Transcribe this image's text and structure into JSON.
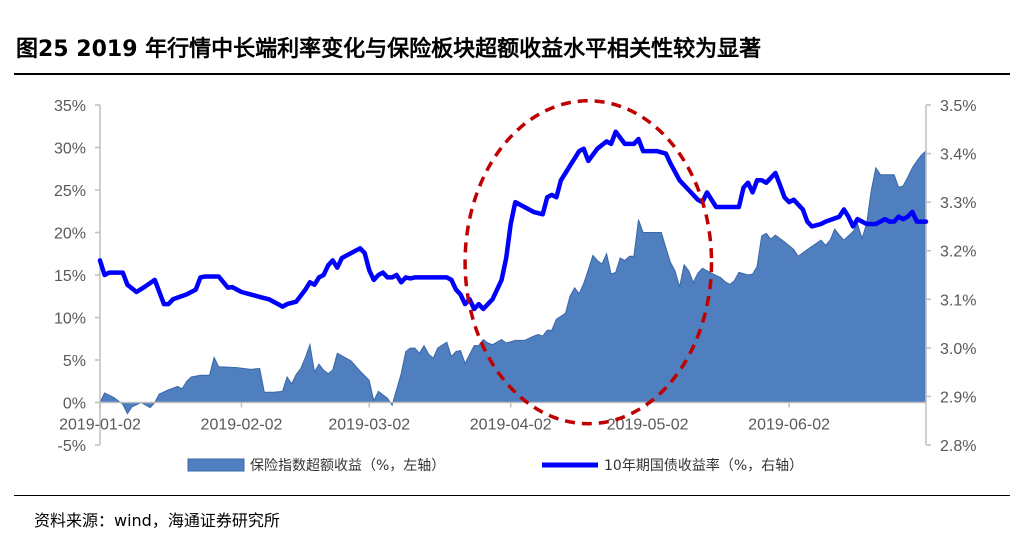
{
  "title": "图25 2019 年行情中长端利率变化与保险板块超额收益水平相关性较为显著",
  "source": "资料来源：wind，海通证券研究所",
  "colors": {
    "area": "#4f7fbe",
    "area_edge": "#3a67a8",
    "line": "#0000ff",
    "circle": "#c00000",
    "axis": "#bfbfbf"
  },
  "chart_data": {
    "type": "area+line",
    "x_ticks": [
      "2019-01-02",
      "2019-02-02",
      "2019-03-02",
      "2019-04-02",
      "2019-05-02",
      "2019-06-02"
    ],
    "x_tick_days": [
      0,
      31,
      59,
      90,
      120,
      151
    ],
    "left_axis": {
      "ticks": [
        "35%",
        "30%",
        "25%",
        "20%",
        "15%",
        "10%",
        "5%",
        "0%",
        "-5%"
      ],
      "ylim": [
        -5,
        35
      ]
    },
    "right_axis": {
      "ticks": [
        "3.5%",
        "3.4%",
        "3.3%",
        "3.2%",
        "3.1%",
        "3.0%",
        "2.9%",
        "2.8%"
      ],
      "ylim": [
        2.8,
        3.5
      ]
    },
    "x_range_days": [
      0,
      181
    ],
    "series": [
      {
        "name": "保险指数超额收益（%，左轴）",
        "type": "area",
        "axis": "left",
        "points": [
          [
            0,
            0
          ],
          [
            1,
            1.1
          ],
          [
            3,
            0.6
          ],
          [
            5,
            -0.2
          ],
          [
            6,
            -1.3
          ],
          [
            7,
            -0.5
          ],
          [
            9,
            0
          ],
          [
            10,
            -0.3
          ],
          [
            11,
            -0.6
          ],
          [
            12,
            0
          ],
          [
            13,
            1
          ],
          [
            15,
            1.5
          ],
          [
            17,
            1.9
          ],
          [
            18,
            1.6
          ],
          [
            19,
            2.5
          ],
          [
            20,
            3
          ],
          [
            22,
            3.2
          ],
          [
            24,
            3.2
          ],
          [
            25,
            5.3
          ],
          [
            26,
            4.2
          ],
          [
            30,
            4.1
          ],
          [
            33,
            3.9
          ],
          [
            35,
            4
          ],
          [
            36,
            1.2
          ],
          [
            38,
            1.2
          ],
          [
            40,
            1.3
          ],
          [
            41,
            3
          ],
          [
            42,
            2.2
          ],
          [
            43,
            3.3
          ],
          [
            44,
            4
          ],
          [
            45,
            5.3
          ],
          [
            46,
            6.8
          ],
          [
            47,
            3.6
          ],
          [
            48,
            4.5
          ],
          [
            49,
            3.8
          ],
          [
            50,
            3.4
          ],
          [
            51,
            3.8
          ],
          [
            52,
            5.8
          ],
          [
            55,
            4.9
          ],
          [
            57,
            3.7
          ],
          [
            59,
            2.6
          ],
          [
            60,
            0.2
          ],
          [
            61,
            1.3
          ],
          [
            63,
            0.5
          ],
          [
            64,
            -0.3
          ],
          [
            66,
            3.4
          ],
          [
            67,
            6
          ],
          [
            68,
            6.4
          ],
          [
            69,
            6.4
          ],
          [
            70,
            5.8
          ],
          [
            71,
            6.7
          ],
          [
            72,
            5.7
          ],
          [
            73,
            5.2
          ],
          [
            74,
            6.4
          ],
          [
            76,
            7.1
          ],
          [
            77,
            5.4
          ],
          [
            78,
            6
          ],
          [
            79,
            6.1
          ],
          [
            80,
            4.6
          ],
          [
            82,
            6.7
          ],
          [
            83,
            6.7
          ],
          [
            84,
            7.4
          ],
          [
            85,
            7
          ],
          [
            86,
            6.8
          ],
          [
            88,
            7.4
          ],
          [
            89,
            7
          ],
          [
            91,
            7.3
          ],
          [
            93,
            7.3
          ],
          [
            95,
            7.8
          ],
          [
            96,
            8
          ],
          [
            97,
            7.8
          ],
          [
            98,
            8.5
          ],
          [
            99,
            8.5
          ],
          [
            100,
            9.8
          ],
          [
            102,
            10.5
          ],
          [
            103,
            12.5
          ],
          [
            104,
            13.5
          ],
          [
            105,
            12.8
          ],
          [
            106,
            14
          ],
          [
            107,
            15.6
          ],
          [
            108,
            17.3
          ],
          [
            109,
            16.7
          ],
          [
            110,
            16.3
          ],
          [
            111,
            17.5
          ],
          [
            112,
            15.1
          ],
          [
            113,
            15.3
          ],
          [
            114,
            17
          ],
          [
            115,
            16.7
          ],
          [
            116,
            17.2
          ],
          [
            117,
            17.2
          ],
          [
            118,
            21.5
          ],
          [
            119,
            20
          ],
          [
            120,
            20
          ],
          [
            123,
            20
          ],
          [
            124,
            18.2
          ],
          [
            125,
            16.5
          ],
          [
            126,
            15.5
          ],
          [
            127,
            13.6
          ],
          [
            128,
            16.2
          ],
          [
            129,
            15.5
          ],
          [
            130,
            14.1
          ],
          [
            131,
            15.2
          ],
          [
            132,
            15.8
          ],
          [
            133,
            15.5
          ],
          [
            134,
            15.2
          ],
          [
            136,
            14.7
          ],
          [
            137,
            14.2
          ],
          [
            138,
            13.9
          ],
          [
            139,
            14.3
          ],
          [
            140,
            15.3
          ],
          [
            142,
            15
          ],
          [
            143,
            15.1
          ],
          [
            144,
            16
          ],
          [
            145,
            19.6
          ],
          [
            146,
            19.9
          ],
          [
            147,
            19.2
          ],
          [
            148,
            19.7
          ],
          [
            150,
            18.9
          ],
          [
            152,
            18
          ],
          [
            153,
            17.2
          ],
          [
            155,
            18
          ],
          [
            158,
            19.1
          ],
          [
            159,
            18.5
          ],
          [
            160,
            19.1
          ],
          [
            161,
            20.4
          ],
          [
            162,
            19.7
          ],
          [
            163,
            19.1
          ],
          [
            165,
            20.1
          ],
          [
            166,
            21
          ],
          [
            167,
            19.3
          ],
          [
            168,
            21.1
          ],
          [
            169,
            24.9
          ],
          [
            170,
            27.6
          ],
          [
            171,
            26.8
          ],
          [
            173,
            26.8
          ],
          [
            174,
            26.8
          ],
          [
            175,
            25.3
          ],
          [
            176,
            25.5
          ],
          [
            177,
            26.5
          ],
          [
            178,
            27.6
          ],
          [
            179,
            28.4
          ],
          [
            180,
            29.1
          ],
          [
            181,
            29.6
          ]
        ]
      },
      {
        "name": "10年期国债收益率（%，右轴）",
        "type": "line",
        "axis": "right",
        "points": [
          [
            0,
            3.18
          ],
          [
            1,
            3.15
          ],
          [
            2,
            3.155
          ],
          [
            5,
            3.155
          ],
          [
            6,
            3.13
          ],
          [
            8,
            3.115
          ],
          [
            10,
            3.127
          ],
          [
            12,
            3.14
          ],
          [
            14,
            3.09
          ],
          [
            15,
            3.09
          ],
          [
            16,
            3.1
          ],
          [
            19,
            3.11
          ],
          [
            21,
            3.12
          ],
          [
            22,
            3.145
          ],
          [
            23,
            3.147
          ],
          [
            25,
            3.147
          ],
          [
            26,
            3.147
          ],
          [
            28,
            3.124
          ],
          [
            29,
            3.125
          ],
          [
            31,
            3.115
          ],
          [
            33,
            3.11
          ],
          [
            35,
            3.105
          ],
          [
            37,
            3.1
          ],
          [
            39,
            3.09
          ],
          [
            40,
            3.085
          ],
          [
            41,
            3.09
          ],
          [
            43,
            3.095
          ],
          [
            45,
            3.12
          ],
          [
            46,
            3.135
          ],
          [
            47,
            3.13
          ],
          [
            48,
            3.145
          ],
          [
            49,
            3.15
          ],
          [
            50,
            3.17
          ],
          [
            51,
            3.18
          ],
          [
            52,
            3.165
          ],
          [
            53,
            3.185
          ],
          [
            56,
            3.2
          ],
          [
            57,
            3.205
          ],
          [
            58,
            3.195
          ],
          [
            59,
            3.16
          ],
          [
            60,
            3.14
          ],
          [
            61,
            3.15
          ],
          [
            62,
            3.155
          ],
          [
            63,
            3.145
          ],
          [
            64,
            3.145
          ],
          [
            65,
            3.15
          ],
          [
            66,
            3.135
          ],
          [
            67,
            3.145
          ],
          [
            68,
            3.143
          ],
          [
            69,
            3.145
          ],
          [
            70,
            3.145
          ],
          [
            72,
            3.145
          ],
          [
            73,
            3.145
          ],
          [
            76,
            3.145
          ],
          [
            77,
            3.14
          ],
          [
            78,
            3.12
          ],
          [
            79,
            3.11
          ],
          [
            80,
            3.09
          ],
          [
            81,
            3.1
          ],
          [
            82,
            3.08
          ],
          [
            83,
            3.09
          ],
          [
            84,
            3.08
          ],
          [
            85,
            3.09
          ],
          [
            86,
            3.1
          ],
          [
            88,
            3.14
          ],
          [
            89,
            3.185
          ],
          [
            90,
            3.255
          ],
          [
            91,
            3.3
          ],
          [
            93,
            3.29
          ],
          [
            95,
            3.28
          ],
          [
            97,
            3.275
          ],
          [
            98,
            3.31
          ],
          [
            99,
            3.315
          ],
          [
            100,
            3.31
          ],
          [
            101,
            3.345
          ],
          [
            102,
            3.36
          ],
          [
            103,
            3.375
          ],
          [
            104,
            3.39
          ],
          [
            105,
            3.405
          ],
          [
            106,
            3.41
          ],
          [
            107,
            3.385
          ],
          [
            109,
            3.41
          ],
          [
            111,
            3.425
          ],
          [
            112,
            3.42
          ],
          [
            113,
            3.445
          ],
          [
            115,
            3.42
          ],
          [
            117,
            3.42
          ],
          [
            118,
            3.43
          ],
          [
            119,
            3.405
          ],
          [
            122,
            3.405
          ],
          [
            124,
            3.4
          ],
          [
            125,
            3.38
          ],
          [
            127,
            3.345
          ],
          [
            129,
            3.325
          ],
          [
            131,
            3.305
          ],
          [
            132,
            3.3
          ],
          [
            133,
            3.32
          ],
          [
            135,
            3.29
          ],
          [
            137,
            3.29
          ],
          [
            140,
            3.29
          ],
          [
            141,
            3.33
          ],
          [
            142,
            3.34
          ],
          [
            143,
            3.32
          ],
          [
            144,
            3.345
          ],
          [
            145,
            3.345
          ],
          [
            146,
            3.34
          ],
          [
            147,
            3.35
          ],
          [
            148,
            3.36
          ],
          [
            149,
            3.335
          ],
          [
            150,
            3.31
          ],
          [
            151,
            3.3
          ],
          [
            152,
            3.305
          ],
          [
            154,
            3.285
          ],
          [
            155,
            3.26
          ],
          [
            156,
            3.25
          ],
          [
            158,
            3.255
          ],
          [
            159,
            3.26
          ],
          [
            162,
            3.27
          ],
          [
            163,
            3.285
          ],
          [
            164,
            3.27
          ],
          [
            165,
            3.25
          ],
          [
            166,
            3.265
          ],
          [
            167,
            3.26
          ],
          [
            168,
            3.255
          ],
          [
            170,
            3.255
          ],
          [
            171,
            3.26
          ],
          [
            172,
            3.265
          ],
          [
            173,
            3.26
          ],
          [
            174,
            3.26
          ],
          [
            175,
            3.27
          ],
          [
            176,
            3.265
          ],
          [
            177,
            3.27
          ],
          [
            178,
            3.28
          ],
          [
            179,
            3.26
          ],
          [
            181,
            3.26
          ]
        ]
      }
    ],
    "annotation": {
      "type": "dashed-ellipse",
      "day_range": [
        80,
        134
      ],
      "left_value_range": [
        -2.5,
        35.5
      ]
    }
  }
}
